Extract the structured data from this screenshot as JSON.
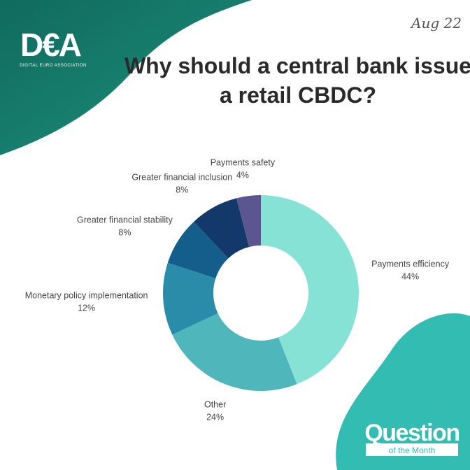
{
  "brand": {
    "logo": "D€A",
    "tagline": "DIGITAL EURO ASSOCIATION"
  },
  "date": "Aug 22",
  "badge": {
    "title": "Question",
    "subtitle": "of the Month"
  },
  "chart_data": {
    "type": "donut",
    "title": "Why should a central bank issue a retail CBDC?",
    "categories": [
      "Payments efficiency",
      "Other",
      "Monetary policy implementation",
      "Greater financial stability",
      "Greater financial inclusion",
      "Payments safety"
    ],
    "values": [
      44,
      24,
      12,
      8,
      8,
      4
    ],
    "value_labels": [
      "44%",
      "24%",
      "12%",
      "8%",
      "8%",
      "4%"
    ],
    "colors": [
      "#86e2d4",
      "#4fb6bc",
      "#2a8ca9",
      "#135e8b",
      "#13396a",
      "#5b5590"
    ]
  }
}
